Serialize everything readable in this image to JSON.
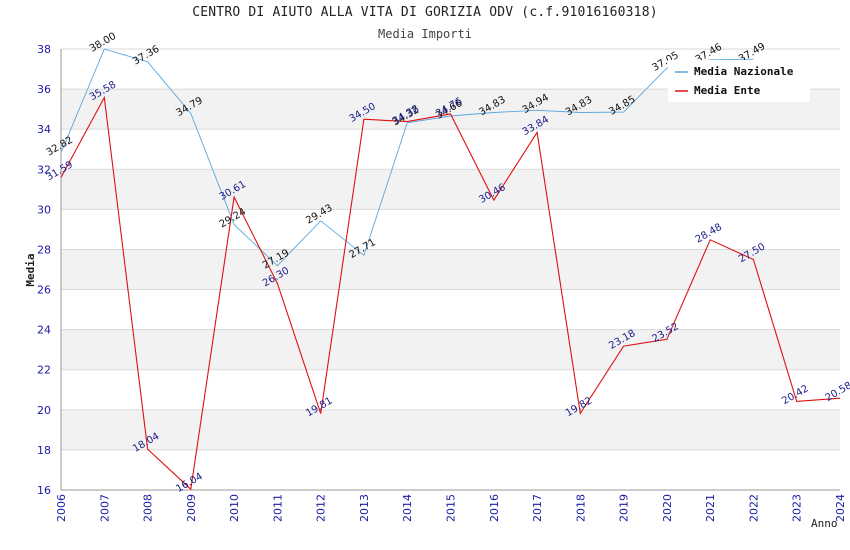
{
  "chart_data": {
    "type": "line",
    "title": "CENTRO DI AIUTO ALLA VITA DI GORIZIA ODV (c.f.91016160318)",
    "subtitle": "Media Importi",
    "xlabel": "Anno",
    "ylabel": "Media",
    "ylim": [
      16,
      38
    ],
    "yticks": [
      16,
      18,
      20,
      22,
      24,
      26,
      28,
      30,
      32,
      34,
      36,
      38
    ],
    "categories": [
      "2006",
      "2007",
      "2008",
      "2009",
      "2010",
      "2011",
      "2012",
      "2013",
      "2014",
      "2015",
      "2016",
      "2017",
      "2018",
      "2019",
      "2020",
      "2021",
      "2022",
      "2023",
      "2024"
    ],
    "series": [
      {
        "name": "Media Nazionale",
        "color": "#5aa6e0",
        "values": [
          32.82,
          38.0,
          37.36,
          34.79,
          29.24,
          27.19,
          29.43,
          27.71,
          34.32,
          34.66,
          34.83,
          34.94,
          34.83,
          34.85,
          37.05,
          37.46,
          37.49,
          null,
          null
        ],
        "labels": [
          "32.82",
          "38.00",
          "37.36",
          "34.79",
          "29.24",
          "27.19",
          "29.43",
          "27.71",
          "34.32",
          "34.66",
          "34.83",
          "34.94",
          "34.83",
          "34.85",
          "37.05",
          "37.46",
          "37.49",
          "",
          ""
        ]
      },
      {
        "name": "Media Ente",
        "color": "#e01010",
        "values": [
          31.59,
          35.58,
          18.04,
          16.04,
          30.61,
          26.3,
          19.81,
          34.5,
          34.38,
          34.76,
          30.46,
          33.84,
          19.82,
          23.18,
          23.52,
          28.48,
          27.5,
          20.42,
          20.58
        ],
        "labels": [
          "31.59",
          "35.58",
          "18.04",
          "16.04",
          "30.61",
          "26.30",
          "19.81",
          "34.50",
          "34.38",
          "34.76",
          "30.46",
          "33.84",
          "19.82",
          "23.18",
          "23.52",
          "28.48",
          "27.50",
          "20.42",
          "20.58"
        ]
      }
    ],
    "legend": "top-right",
    "grid": true
  }
}
